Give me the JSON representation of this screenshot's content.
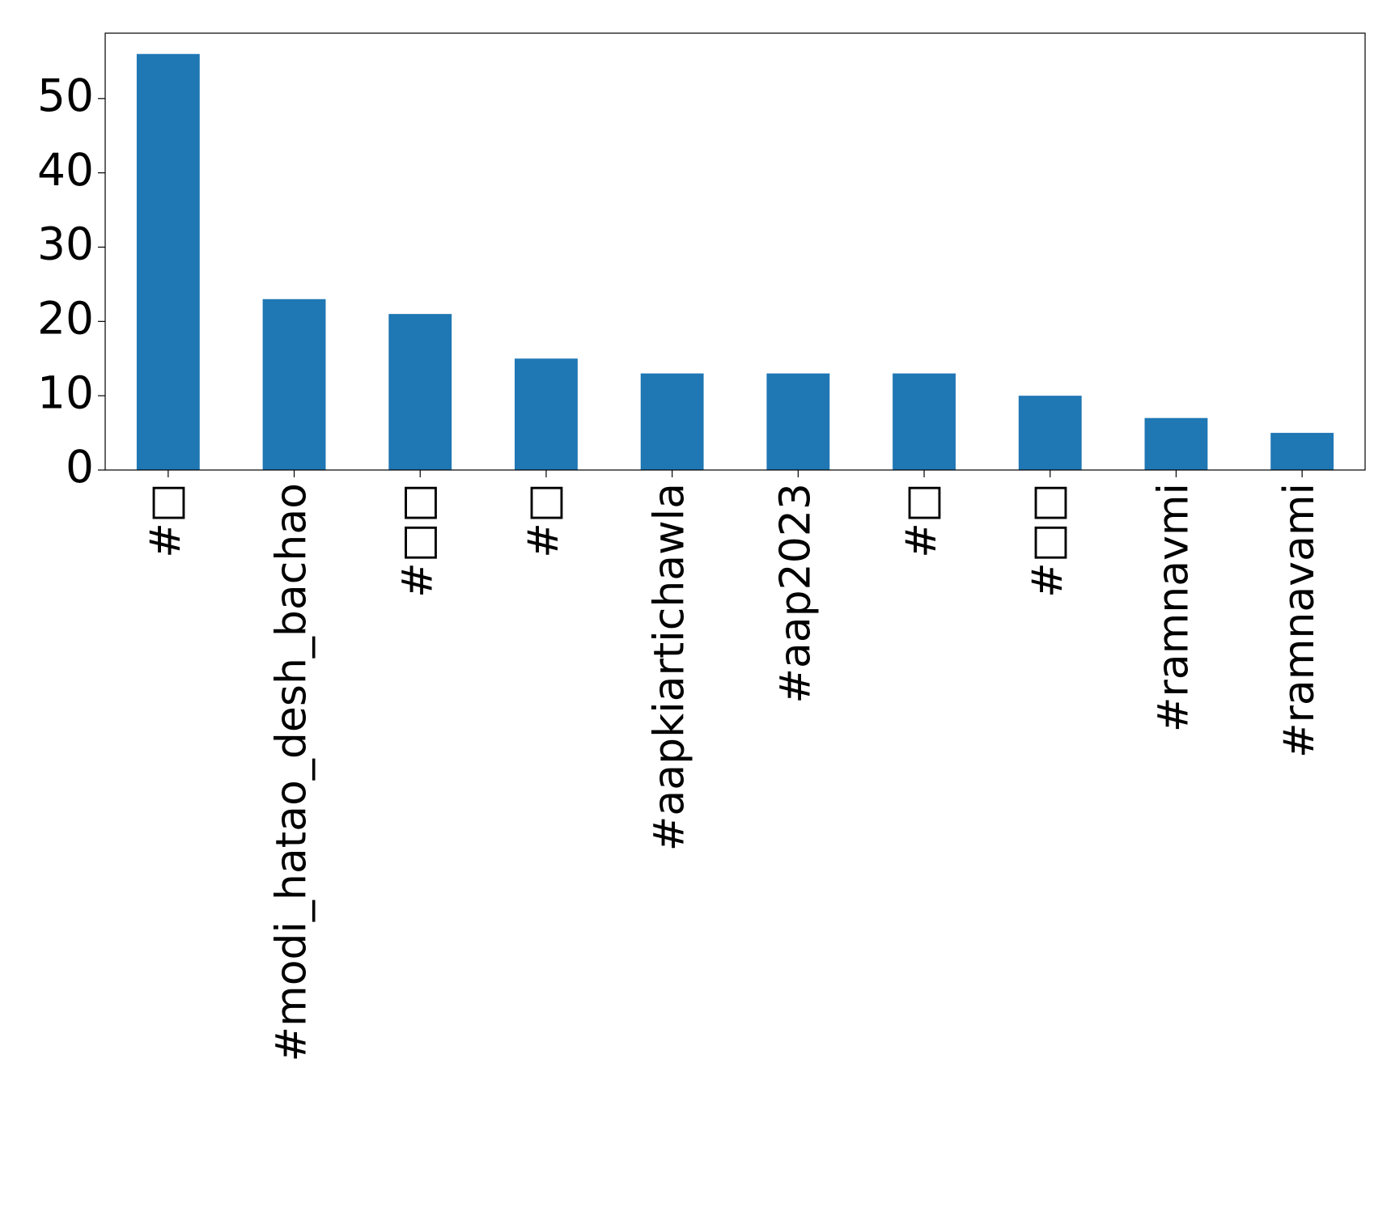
{
  "chart_data": {
    "type": "bar",
    "categories": [
      "#□",
      "#modi_hatao_desh_bachao",
      "#□□",
      "#□",
      "#aapkiartichawla",
      "#aap2023",
      "#□",
      "#□□",
      "#ramnavmi",
      "#ramnavami"
    ],
    "values": [
      56,
      23,
      21,
      15,
      13,
      13,
      13,
      10,
      7,
      5
    ],
    "color": "#1f77b4",
    "ylim": [
      0,
      58.8
    ],
    "yticks": [
      0,
      10,
      20,
      30,
      40,
      50
    ]
  }
}
